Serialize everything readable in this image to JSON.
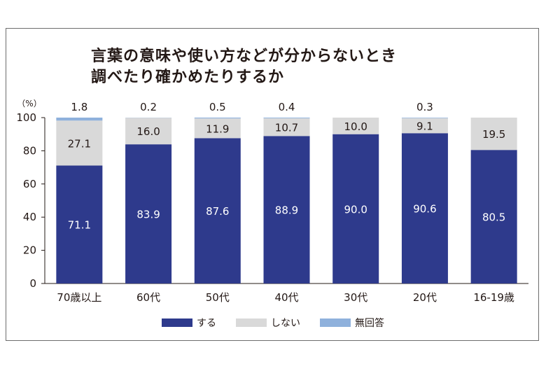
{
  "chart_data": {
    "type": "bar",
    "stacked": true,
    "title_lines": [
      "言葉の意味や使い方などが分からないとき",
      "調べたり確かめたりするか"
    ],
    "y_unit": "（%）",
    "ylim": [
      0,
      100
    ],
    "yticks": [
      0,
      20,
      40,
      60,
      80,
      100
    ],
    "categories": [
      "70歳以上",
      "60代",
      "50代",
      "40代",
      "30代",
      "20代",
      "16-19歳"
    ],
    "series": [
      {
        "name": "する",
        "color": "#2e3a8c",
        "values": [
          71.1,
          83.9,
          87.6,
          88.9,
          90.0,
          90.6,
          80.5
        ]
      },
      {
        "name": "しない",
        "color": "#d9d9d9",
        "values": [
          27.1,
          16.0,
          11.9,
          10.7,
          10.0,
          9.1,
          19.5
        ]
      },
      {
        "name": "無回答",
        "color": "#8fb1dc",
        "values": [
          1.8,
          0.2,
          0.5,
          0.4,
          null,
          0.3,
          null
        ]
      }
    ],
    "value_labels": {
      "する": [
        "71.1",
        "83.9",
        "87.6",
        "88.9",
        "90.0",
        "90.6",
        "80.5"
      ],
      "しない": [
        "27.1",
        "16.0",
        "11.9",
        "10.7",
        "10.0",
        "9.1",
        "19.5"
      ],
      "無回答": [
        "1.8",
        "0.2",
        "0.5",
        "0.4",
        "",
        "0.3",
        ""
      ]
    },
    "legend_position": "bottom",
    "grid": false
  }
}
